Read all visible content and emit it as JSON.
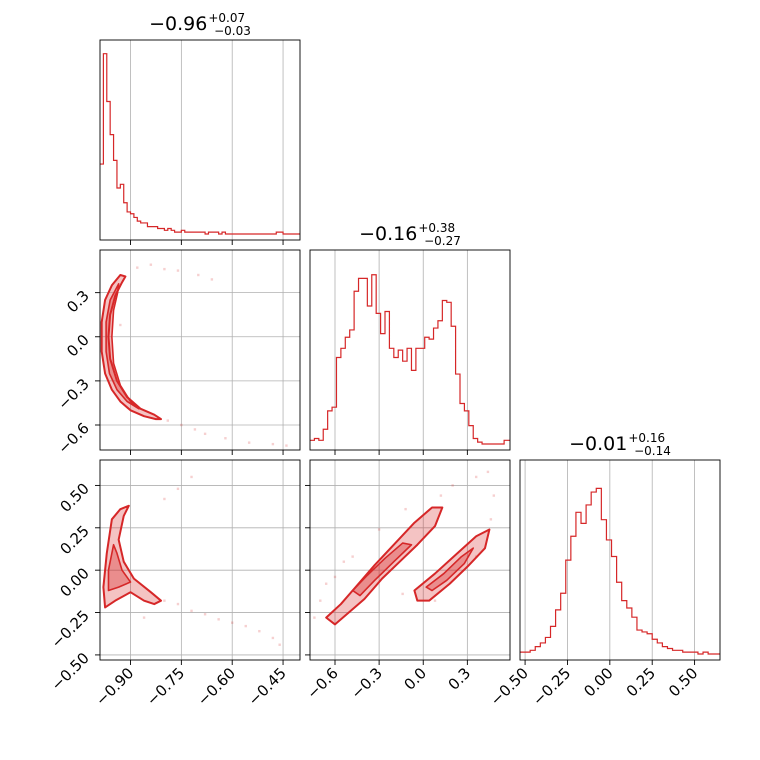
{
  "chart_data": {
    "type": "corner",
    "color": "#d62728",
    "grid": true,
    "parameters": [
      {
        "title": {
          "main": "−0.96",
          "plus": "+0.07",
          "minus": "−0.03"
        },
        "range": [
          -0.99,
          -0.4
        ],
        "ticks": [
          -0.9,
          -0.75,
          -0.6,
          -0.45
        ],
        "tick_labels": [
          "−0.90",
          "−0.75",
          "−0.60",
          "−0.45"
        ]
      },
      {
        "title": {
          "main": "−0.16",
          "plus": "+0.38",
          "minus": "−0.27"
        },
        "range": [
          -0.77,
          0.59
        ],
        "ticks": [
          -0.6,
          -0.3,
          0.0,
          0.3
        ],
        "tick_labels": [
          "−0.6",
          "−0.3",
          "0.0",
          "0.3"
        ]
      },
      {
        "title": {
          "main": "−0.01",
          "plus": "+0.16",
          "minus": "−0.14"
        },
        "range": [
          -0.53,
          0.65
        ],
        "ticks": [
          -0.5,
          -0.25,
          0.0,
          0.25,
          0.5
        ],
        "tick_labels": [
          "−0.50",
          "−0.25",
          "0.00",
          "0.25",
          "0.50"
        ]
      }
    ],
    "histograms": [
      {
        "param": 0,
        "bins": [
          -0.99,
          -0.98,
          -0.97,
          -0.96,
          -0.95,
          -0.94,
          -0.93,
          -0.92,
          -0.91,
          -0.9,
          -0.89,
          -0.88,
          -0.87,
          -0.86,
          -0.85,
          -0.84,
          -0.83,
          -0.82,
          -0.81,
          -0.8,
          -0.79,
          -0.78,
          -0.77,
          -0.76,
          -0.75,
          -0.74,
          -0.73,
          -0.72,
          -0.71,
          -0.7,
          -0.69,
          -0.68,
          -0.67,
          -0.66,
          -0.65,
          -0.64,
          -0.63,
          -0.62,
          -0.61,
          -0.6,
          -0.59,
          -0.58,
          -0.57,
          -0.56,
          -0.55,
          -0.54,
          -0.53,
          -0.52,
          -0.51,
          -0.5,
          -0.49,
          -0.48,
          -0.47,
          -0.46,
          -0.45,
          -0.44,
          -0.43,
          -0.42,
          -0.41,
          -0.4
        ],
        "counts": [
          0.38,
          0.98,
          0.72,
          0.54,
          0.4,
          0.25,
          0.27,
          0.17,
          0.12,
          0.11,
          0.09,
          0.07,
          0.06,
          0.06,
          0.04,
          0.04,
          0.04,
          0.03,
          0.03,
          0.02,
          0.03,
          0.02,
          0.01,
          0.01,
          0.02,
          0.01,
          0.01,
          0.01,
          0.01,
          0.01,
          0.01,
          0.0,
          0.01,
          0.01,
          0.01,
          0.0,
          0.01,
          0.0,
          0.0,
          0.0,
          0.0,
          0.0,
          0.0,
          0.0,
          0.0,
          0.0,
          0.0,
          0.0,
          0.0,
          0.0,
          0.0,
          0.0,
          0.01,
          0.01,
          0.0,
          0.0,
          0.0,
          0.0,
          0.0
        ]
      },
      {
        "param": 1,
        "bins": [
          -0.77,
          -0.74,
          -0.71,
          -0.68,
          -0.65,
          -0.62,
          -0.59,
          -0.56,
          -0.53,
          -0.5,
          -0.47,
          -0.44,
          -0.41,
          -0.38,
          -0.35,
          -0.32,
          -0.29,
          -0.26,
          -0.23,
          -0.2,
          -0.17,
          -0.14,
          -0.11,
          -0.08,
          -0.05,
          -0.02,
          0.01,
          0.04,
          0.07,
          0.1,
          0.13,
          0.16,
          0.19,
          0.22,
          0.25,
          0.28,
          0.31,
          0.34,
          0.37,
          0.4,
          0.43,
          0.46,
          0.49,
          0.52,
          0.55,
          0.59
        ],
        "counts": [
          0.02,
          0.03,
          0.02,
          0.08,
          0.18,
          0.2,
          0.47,
          0.52,
          0.58,
          0.62,
          0.83,
          0.9,
          0.9,
          0.75,
          0.92,
          0.71,
          0.6,
          0.72,
          0.52,
          0.47,
          0.51,
          0.45,
          0.52,
          0.4,
          0.52,
          0.52,
          0.58,
          0.57,
          0.63,
          0.67,
          0.78,
          0.77,
          0.64,
          0.38,
          0.22,
          0.18,
          0.1,
          0.03,
          0.01,
          0.0,
          0.0,
          0.0,
          0.0,
          0.0,
          0.02
        ]
      },
      {
        "param": 2,
        "bins": [
          -0.53,
          -0.5,
          -0.47,
          -0.44,
          -0.41,
          -0.38,
          -0.35,
          -0.32,
          -0.29,
          -0.26,
          -0.23,
          -0.2,
          -0.17,
          -0.14,
          -0.11,
          -0.08,
          -0.05,
          -0.02,
          0.01,
          0.04,
          0.07,
          0.1,
          0.13,
          0.16,
          0.19,
          0.22,
          0.25,
          0.28,
          0.31,
          0.34,
          0.37,
          0.4,
          0.43,
          0.46,
          0.49,
          0.52,
          0.55,
          0.58,
          0.61,
          0.65
        ],
        "counts": [
          0.01,
          0.01,
          0.02,
          0.04,
          0.06,
          0.09,
          0.15,
          0.24,
          0.33,
          0.51,
          0.64,
          0.77,
          0.71,
          0.81,
          0.88,
          0.9,
          0.73,
          0.62,
          0.53,
          0.39,
          0.29,
          0.25,
          0.2,
          0.13,
          0.12,
          0.11,
          0.08,
          0.06,
          0.04,
          0.03,
          0.02,
          0.02,
          0.01,
          0.01,
          0.01,
          0.0,
          0.01,
          0.0,
          0.0
        ]
      }
    ],
    "contours": [
      {
        "x": 0,
        "y": 1,
        "regions": [
          {
            "outer": [
              [
                -0.93,
                0.42
              ],
              [
                -0.955,
                0.35
              ],
              [
                -0.975,
                0.25
              ],
              [
                -0.985,
                0.1
              ],
              [
                -0.985,
                -0.1
              ],
              [
                -0.975,
                -0.25
              ],
              [
                -0.955,
                -0.36
              ],
              [
                -0.93,
                -0.44
              ],
              [
                -0.9,
                -0.5
              ],
              [
                -0.86,
                -0.54
              ],
              [
                -0.825,
                -0.56
              ],
              [
                -0.81,
                -0.56
              ],
              [
                -0.83,
                -0.53
              ],
              [
                -0.87,
                -0.49
              ],
              [
                -0.91,
                -0.41
              ],
              [
                -0.94,
                -0.3
              ],
              [
                -0.96,
                -0.15
              ],
              [
                -0.965,
                0.0
              ],
              [
                -0.96,
                0.15
              ],
              [
                -0.945,
                0.28
              ],
              [
                -0.925,
                0.37
              ],
              [
                -0.915,
                0.41
              ]
            ],
            "inner": [
              [
                -0.935,
                0.36
              ],
              [
                -0.96,
                0.25
              ],
              [
                -0.972,
                0.1
              ],
              [
                -0.972,
                -0.1
              ],
              [
                -0.962,
                -0.25
              ],
              [
                -0.94,
                -0.36
              ],
              [
                -0.91,
                -0.44
              ],
              [
                -0.875,
                -0.49
              ],
              [
                -0.9,
                -0.44
              ],
              [
                -0.93,
                -0.33
              ],
              [
                -0.95,
                -0.18
              ],
              [
                -0.955,
                0.0
              ],
              [
                -0.95,
                0.18
              ],
              [
                -0.938,
                0.3
              ]
            ]
          }
        ]
      },
      {
        "x": 0,
        "y": 2,
        "regions": [
          {
            "outer": [
              [
                -0.955,
                0.3
              ],
              [
                -0.97,
                0.1
              ],
              [
                -0.98,
                -0.1
              ],
              [
                -0.975,
                -0.22
              ],
              [
                -0.945,
                -0.18
              ],
              [
                -0.9,
                -0.13
              ],
              [
                -0.86,
                -0.18
              ],
              [
                -0.83,
                -0.2
              ],
              [
                -0.81,
                -0.18
              ],
              [
                -0.84,
                -0.13
              ],
              [
                -0.89,
                -0.05
              ],
              [
                -0.92,
                0.05
              ],
              [
                -0.935,
                0.18
              ],
              [
                -0.92,
                0.32
              ],
              [
                -0.905,
                0.38
              ],
              [
                -0.93,
                0.36
              ]
            ],
            "inner": [
              [
                -0.95,
                0.15
              ],
              [
                -0.965,
                0.0
              ],
              [
                -0.965,
                -0.12
              ],
              [
                -0.935,
                -0.1
              ],
              [
                -0.9,
                -0.07
              ],
              [
                -0.925,
                0.0
              ],
              [
                -0.94,
                0.1
              ]
            ]
          }
        ]
      },
      {
        "x": 1,
        "y": 2,
        "regions": [
          {
            "outer": [
              [
                -0.66,
                -0.28
              ],
              [
                -0.56,
                -0.2
              ],
              [
                -0.46,
                -0.1
              ],
              [
                -0.33,
                0.03
              ],
              [
                -0.2,
                0.15
              ],
              [
                -0.06,
                0.28
              ],
              [
                0.06,
                0.37
              ],
              [
                0.13,
                0.37
              ],
              [
                0.08,
                0.26
              ],
              [
                -0.04,
                0.15
              ],
              [
                -0.16,
                0.05
              ],
              [
                -0.28,
                -0.05
              ],
              [
                -0.4,
                -0.17
              ],
              [
                -0.52,
                -0.26
              ],
              [
                -0.6,
                -0.32
              ]
            ],
            "inner": [
              [
                -0.48,
                -0.12
              ],
              [
                -0.38,
                -0.03
              ],
              [
                -0.26,
                0.07
              ],
              [
                -0.14,
                0.16
              ],
              [
                -0.08,
                0.15
              ],
              [
                -0.2,
                0.05
              ],
              [
                -0.33,
                -0.06
              ],
              [
                -0.43,
                -0.15
              ]
            ]
          },
          {
            "outer": [
              [
                -0.06,
                -0.12
              ],
              [
                0.08,
                -0.02
              ],
              [
                0.22,
                0.09
              ],
              [
                0.36,
                0.2
              ],
              [
                0.45,
                0.24
              ],
              [
                0.42,
                0.13
              ],
              [
                0.3,
                0.02
              ],
              [
                0.18,
                -0.08
              ],
              [
                0.04,
                -0.18
              ],
              [
                -0.04,
                -0.18
              ]
            ],
            "inner": [
              [
                0.02,
                -0.1
              ],
              [
                0.14,
                -0.02
              ],
              [
                0.26,
                0.08
              ],
              [
                0.34,
                0.13
              ],
              [
                0.28,
                0.04
              ],
              [
                0.16,
                -0.06
              ],
              [
                0.06,
                -0.12
              ]
            ]
          }
        ]
      }
    ],
    "scatter": [
      {
        "x": 0,
        "y": 1,
        "points": [
          [
            -0.88,
            0.47
          ],
          [
            -0.84,
            0.49
          ],
          [
            -0.8,
            0.46
          ],
          [
            -0.76,
            0.45
          ],
          [
            -0.7,
            0.42
          ],
          [
            -0.66,
            0.39
          ],
          [
            -0.79,
            -0.57
          ],
          [
            -0.75,
            -0.6
          ],
          [
            -0.71,
            -0.63
          ],
          [
            -0.68,
            -0.66
          ],
          [
            -0.62,
            -0.69
          ],
          [
            -0.55,
            -0.72
          ],
          [
            -0.48,
            -0.73
          ],
          [
            -0.44,
            -0.74
          ],
          [
            -0.93,
            0.08
          ]
        ]
      },
      {
        "x": 0,
        "y": 2,
        "points": [
          [
            -0.8,
            0.42
          ],
          [
            -0.76,
            0.48
          ],
          [
            -0.72,
            0.55
          ],
          [
            -0.8,
            -0.18
          ],
          [
            -0.76,
            -0.2
          ],
          [
            -0.72,
            -0.24
          ],
          [
            -0.68,
            -0.26
          ],
          [
            -0.64,
            -0.29
          ],
          [
            -0.6,
            -0.31
          ],
          [
            -0.56,
            -0.33
          ],
          [
            -0.52,
            -0.36
          ],
          [
            -0.48,
            -0.4
          ],
          [
            -0.46,
            -0.44
          ],
          [
            -0.86,
            -0.28
          ]
        ]
      },
      {
        "x": 1,
        "y": 2,
        "points": [
          [
            -0.7,
            -0.18
          ],
          [
            -0.66,
            -0.08
          ],
          [
            -0.6,
            -0.04
          ],
          [
            -0.54,
            0.05
          ],
          [
            -0.48,
            0.08
          ],
          [
            -0.3,
            0.24
          ],
          [
            -0.12,
            0.36
          ],
          [
            0.12,
            0.44
          ],
          [
            0.2,
            0.5
          ],
          [
            0.36,
            0.55
          ],
          [
            0.44,
            0.58
          ],
          [
            0.48,
            0.44
          ],
          [
            -0.14,
            -0.14
          ],
          [
            0.08,
            -0.18
          ],
          [
            0.36,
            0.08
          ],
          [
            0.46,
            0.3
          ],
          [
            -0.74,
            -0.28
          ]
        ]
      }
    ]
  }
}
